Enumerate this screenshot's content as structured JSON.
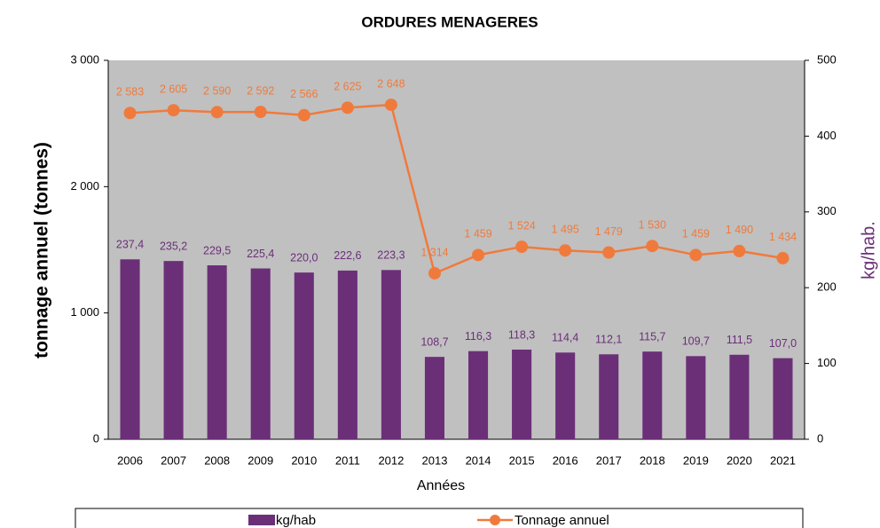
{
  "chart_data": {
    "type": "bar-line",
    "title": "ORDURES MENAGERES",
    "xlabel": "Années",
    "ylabel": "tonnage annuel (tonnes)",
    "y2label": "kg/hab.",
    "categories": [
      "2006",
      "2007",
      "2008",
      "2009",
      "2010",
      "2011",
      "2012",
      "2013",
      "2014",
      "2015",
      "2016",
      "2017",
      "2018",
      "2019",
      "2020",
      "2021"
    ],
    "series": [
      {
        "name": "kg/hab",
        "type": "bar",
        "axis": "y2",
        "color": "#6b2f78",
        "values": [
          237.4,
          235.2,
          229.5,
          225.4,
          220.0,
          222.6,
          223.3,
          108.7,
          116.3,
          118.3,
          114.4,
          112.1,
          115.7,
          109.7,
          111.5,
          107.0
        ],
        "value_labels": [
          "237,4",
          "235,2",
          "229,5",
          "225,4",
          "220,0",
          "222,6",
          "223,3",
          "108,7",
          "116,3",
          "118,3",
          "114,4",
          "112,1",
          "115,7",
          "109,7",
          "111,5",
          "107,0"
        ]
      },
      {
        "name": "Tonnage annuel",
        "type": "line",
        "axis": "y",
        "color": "#f07a3c",
        "values": [
          2583,
          2605,
          2590,
          2592,
          2566,
          2625,
          2648,
          1314,
          1459,
          1524,
          1495,
          1479,
          1530,
          1459,
          1490,
          1434
        ],
        "value_labels": [
          "2 583",
          "2 605",
          "2 590",
          "2 592",
          "2 566",
          "2 625",
          "2 648",
          "1 314",
          "1 459",
          "1 524",
          "1 495",
          "1 479",
          "1 530",
          "1 459",
          "1 490",
          "1 434"
        ]
      }
    ],
    "ylim": [
      0,
      3000
    ],
    "yticks": [
      0,
      {
        "value": 1000,
        "label": "1 000"
      },
      {
        "value": 2000,
        "label": "2 000"
      },
      {
        "value": 3000,
        "label": "3 000"
      }
    ],
    "y2lim": [
      0,
      500
    ],
    "y2ticks": [
      0,
      100,
      200,
      300,
      400,
      500
    ],
    "grid": false,
    "plot_background": "#c0c0c0",
    "legend": "bottom"
  }
}
